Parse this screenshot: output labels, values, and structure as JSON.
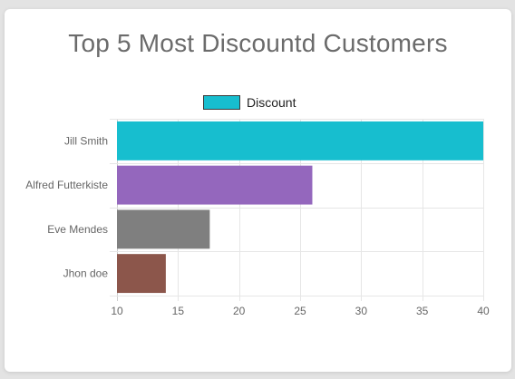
{
  "card": {
    "title": "Top 5 Most Discountd Customers"
  },
  "chart_data": {
    "type": "bar",
    "orientation": "horizontal",
    "title": "Top 5 Most Discountd Customers",
    "categories": [
      "Jill Smith",
      "Alfred Futterkiste",
      "Eve Mendes",
      "Jhon doe"
    ],
    "series": [
      {
        "name": "Discount",
        "values": [
          40,
          26,
          17.6,
          14
        ],
        "colors": [
          "#17becf",
          "#9467bd",
          "#7f7f7f",
          "#8c564b"
        ]
      }
    ],
    "xlim": [
      10,
      40
    ],
    "xticks": [
      10,
      15,
      20,
      25,
      30,
      35,
      40
    ],
    "grid": true,
    "legend_position": "top",
    "legend_color": "#17becf",
    "xlabel": "",
    "ylabel": ""
  }
}
